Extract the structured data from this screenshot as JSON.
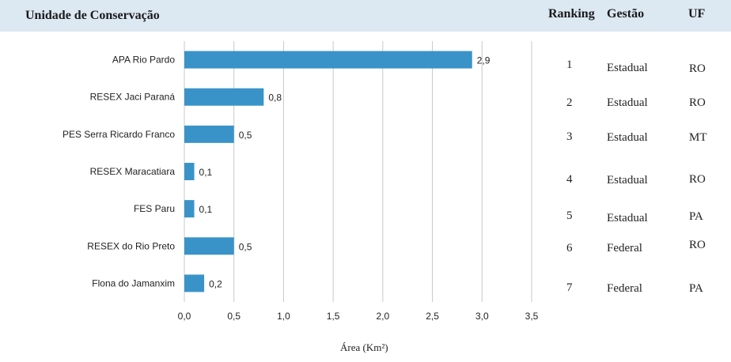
{
  "chart_data": {
    "type": "bar",
    "orientation": "horizontal",
    "title": "Unidade de Conservação",
    "xlabel": "Área (Km²)",
    "ylabel": "",
    "categories": [
      "APA Rio Pardo",
      "RESEX Jaci Paraná",
      "PES Serra Ricardo Franco",
      "RESEX Maracatiara",
      "FES Paru",
      "RESEX do Rio Preto",
      "Flona do Jamanxim"
    ],
    "values": [
      2.9,
      0.8,
      0.5,
      0.1,
      0.1,
      0.5,
      0.2
    ],
    "value_labels": [
      "2,9",
      "0,8",
      "0,5",
      "0,1",
      "0,1",
      "0,5",
      "0,2"
    ],
    "xlim": [
      0,
      3.5
    ],
    "x_ticks": [
      0,
      0.5,
      1,
      1.5,
      2,
      2.5,
      3,
      3.5
    ],
    "x_tick_labels": [
      "0,0",
      "0,5",
      "1,0",
      "1,5",
      "2,0",
      "2,5",
      "3,0",
      "3,5"
    ],
    "grid": "vertical",
    "bar_color": "#3a93c8",
    "grid_color": "#c8c8c8"
  },
  "table": {
    "headers": {
      "ranking": "Ranking",
      "gestao": "Gestão",
      "uf": "UF"
    },
    "rows": [
      {
        "ranking": "1",
        "gestao": "Estadual",
        "uf": "RO"
      },
      {
        "ranking": "2",
        "gestao": "Estadual",
        "uf": "RO"
      },
      {
        "ranking": "3",
        "gestao": "Estadual",
        "uf": "MT"
      },
      {
        "ranking": "4",
        "gestao": "Estadual",
        "uf": "RO"
      },
      {
        "ranking": "5",
        "gestao": "Estadual",
        "uf": "PA"
      },
      {
        "ranking": "6",
        "gestao": "Federal",
        "uf": "RO"
      },
      {
        "ranking": "7",
        "gestao": "Federal",
        "uf": "PA"
      }
    ]
  }
}
